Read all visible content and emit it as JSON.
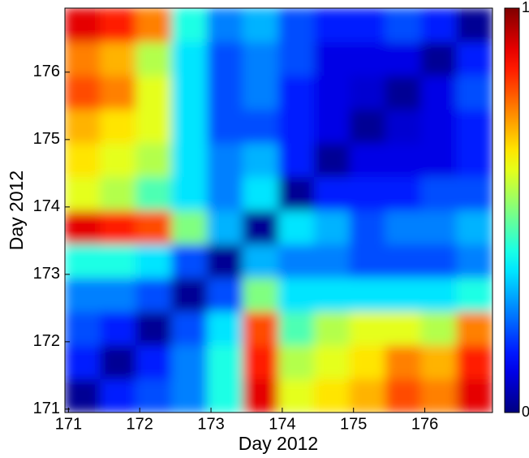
{
  "chart_data": {
    "type": "heatmap",
    "x_label": "Day 2012",
    "y_label": "Day 2012",
    "x": [
      171.2,
      171.7,
      172.2,
      172.7,
      173.2,
      173.7,
      174.2,
      174.7,
      175.2,
      175.7,
      176.2,
      176.7
    ],
    "y": [
      171.2,
      171.7,
      172.2,
      172.7,
      173.2,
      173.7,
      174.2,
      174.7,
      175.2,
      175.7,
      176.2,
      176.7
    ],
    "z": [
      [
        0.02,
        0.15,
        0.2,
        0.25,
        0.4,
        0.9,
        0.6,
        0.65,
        0.7,
        0.8,
        0.75,
        0.9
      ],
      [
        0.15,
        0.02,
        0.15,
        0.25,
        0.4,
        0.85,
        0.55,
        0.6,
        0.65,
        0.75,
        0.7,
        0.85
      ],
      [
        0.2,
        0.15,
        0.02,
        0.2,
        0.35,
        0.8,
        0.45,
        0.55,
        0.6,
        0.6,
        0.55,
        0.75
      ],
      [
        0.25,
        0.25,
        0.2,
        0.02,
        0.2,
        0.5,
        0.35,
        0.35,
        0.35,
        0.35,
        0.35,
        0.4
      ],
      [
        0.4,
        0.4,
        0.35,
        0.2,
        0.02,
        0.3,
        0.25,
        0.25,
        0.2,
        0.2,
        0.2,
        0.25
      ],
      [
        0.9,
        0.85,
        0.8,
        0.5,
        0.3,
        0.02,
        0.35,
        0.3,
        0.2,
        0.25,
        0.25,
        0.3
      ],
      [
        0.6,
        0.55,
        0.45,
        0.35,
        0.25,
        0.35,
        0.02,
        0.15,
        0.15,
        0.15,
        0.2,
        0.2
      ],
      [
        0.65,
        0.6,
        0.55,
        0.35,
        0.25,
        0.3,
        0.15,
        0.02,
        0.1,
        0.1,
        0.1,
        0.15
      ],
      [
        0.7,
        0.65,
        0.6,
        0.35,
        0.2,
        0.2,
        0.15,
        0.1,
        0.02,
        0.08,
        0.1,
        0.15
      ],
      [
        0.8,
        0.75,
        0.6,
        0.35,
        0.2,
        0.25,
        0.15,
        0.1,
        0.08,
        0.02,
        0.1,
        0.2
      ],
      [
        0.75,
        0.7,
        0.55,
        0.35,
        0.2,
        0.25,
        0.2,
        0.1,
        0.1,
        0.1,
        0.02,
        0.15
      ],
      [
        0.9,
        0.85,
        0.75,
        0.4,
        0.25,
        0.3,
        0.2,
        0.15,
        0.15,
        0.2,
        0.15,
        0.02
      ]
    ],
    "xlim": [
      170.95,
      176.95
    ],
    "ylim": [
      170.95,
      176.95
    ],
    "xticks": [
      171,
      172,
      173,
      174,
      175,
      176
    ],
    "yticks": [
      171,
      172,
      173,
      174,
      175,
      176
    ],
    "colormap": "jet",
    "zlim": [
      0,
      1
    ],
    "colorbar_ticks": [
      0,
      1
    ]
  }
}
